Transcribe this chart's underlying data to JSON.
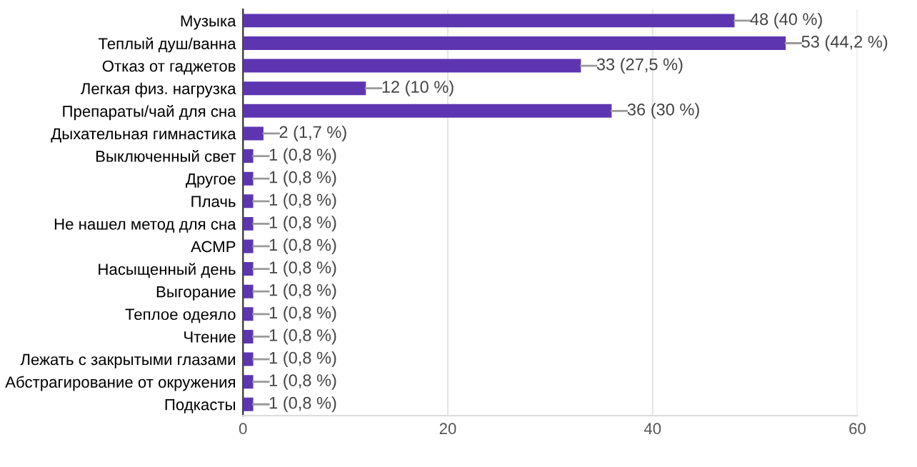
{
  "chart_data": {
    "type": "bar",
    "orientation": "horizontal",
    "categories": [
      "Музыка",
      "Теплый душ/ванна",
      "Отказ от гаджетов",
      "Легкая физ. нагрузка",
      "Препараты/чай для сна",
      "Дыхательная гимнастика",
      "Выключенный свет",
      "Другое",
      "Плачь",
      "Не нашел метод для сна",
      "АСМР",
      "Насыщенный день",
      "Выгорание",
      "Теплое одеяло",
      "Чтение",
      "Лежать с закрытыми глазами",
      "Абстрагирование от окружения",
      "Подкасты"
    ],
    "values": [
      48,
      53,
      33,
      12,
      36,
      2,
      1,
      1,
      1,
      1,
      1,
      1,
      1,
      1,
      1,
      1,
      1,
      1
    ],
    "value_labels": [
      "48 (40 %)",
      "53 (44,2 %)",
      "33 (27,5 %)",
      "12 (10 %)",
      "36 (30 %)",
      "2 (1,7 %)",
      "1 (0,8 %)",
      "1 (0,8 %)",
      "1 (0,8 %)",
      "1 (0,8 %)",
      "1 (0,8 %)",
      "1 (0,8 %)",
      "1 (0,8 %)",
      "1 (0,8 %)",
      "1 (0,8 %)",
      "1 (0,8 %)",
      "1 (0,8 %)",
      "1 (0,8 %)"
    ],
    "color": "#5e35b1",
    "xlim": [
      0,
      60
    ],
    "xticks": [
      0,
      20,
      40,
      60
    ],
    "grid": "x"
  }
}
